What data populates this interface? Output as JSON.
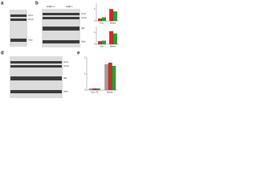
{
  "panels": {
    "a": {
      "label": "a",
      "bands": [
        "LC3-I",
        "LC3-II",
        "Actin"
      ]
    },
    "b": {
      "label": "b",
      "groups": [
        "Atg5+/+",
        "Atg5-/-"
      ],
      "bands": [
        "LC3-I",
        "LC3-II",
        "p62",
        "Actin"
      ]
    },
    "d": {
      "label": "d",
      "bands": [
        "LC3-I",
        "LC3-II",
        "p62",
        "Actin"
      ]
    },
    "e": {
      "label": "e"
    }
  },
  "charts": [
    {
      "type": "bar",
      "categories": [
        "Con.",
        "Bortez."
      ],
      "ylim": [
        0,
        1.5
      ],
      "yticks": [
        0,
        1
      ],
      "series": [
        {
          "color": "#d62728",
          "values": [
            0.2,
            1.0
          ]
        },
        {
          "color": "#2ca02c",
          "values": [
            0.3,
            0.8
          ]
        }
      ]
    },
    {
      "type": "bar",
      "categories": [
        "Con.",
        "Bortez."
      ],
      "ylim": [
        0,
        1.5
      ],
      "yticks": [
        0,
        1
      ],
      "series": [
        {
          "color": "#d62728",
          "values": [
            0.25,
            1.1
          ]
        },
        {
          "color": "#2ca02c",
          "values": [
            0.3,
            0.9
          ]
        }
      ]
    },
    {
      "type": "bar",
      "categories": [
        "Con. P2",
        "Bortez."
      ],
      "ylim": [
        0,
        2
      ],
      "yticks": [
        0,
        1,
        2
      ],
      "series": [
        {
          "color": "#9e9e9e",
          "values": [
            0.1,
            1.6
          ]
        },
        {
          "color": "#d62728",
          "values": [
            0.1,
            1.7
          ]
        },
        {
          "color": "#2ca02c",
          "values": [
            0.1,
            1.5
          ]
        }
      ]
    }
  ]
}
